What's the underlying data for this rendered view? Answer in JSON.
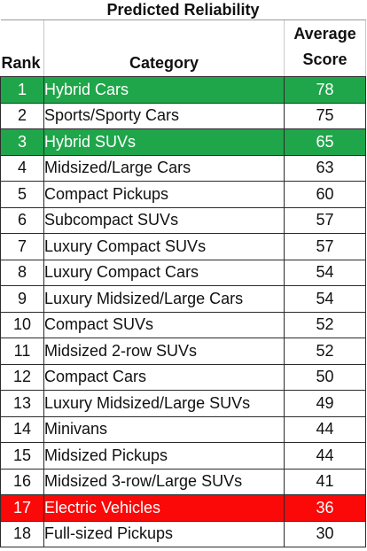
{
  "table": {
    "title": "Predicted Reliability",
    "headers": {
      "rank": "Rank",
      "category": "Category",
      "score_line1": "Average",
      "score_line2": "Score"
    },
    "rows": [
      {
        "rank": "1",
        "category": "Hybrid Cars",
        "score": "78",
        "highlight": "green"
      },
      {
        "rank": "2",
        "category": "Sports/Sporty Cars",
        "score": "75",
        "highlight": "none"
      },
      {
        "rank": "3",
        "category": "Hybrid SUVs",
        "score": "65",
        "highlight": "green"
      },
      {
        "rank": "4",
        "category": "Midsized/Large Cars",
        "score": "63",
        "highlight": "none"
      },
      {
        "rank": "5",
        "category": "Compact Pickups",
        "score": "60",
        "highlight": "none"
      },
      {
        "rank": "6",
        "category": "Subcompact SUVs",
        "score": "57",
        "highlight": "none"
      },
      {
        "rank": "7",
        "category": "Luxury Compact SUVs",
        "score": "57",
        "highlight": "none"
      },
      {
        "rank": "8",
        "category": "Luxury Compact Cars",
        "score": "54",
        "highlight": "none"
      },
      {
        "rank": "9",
        "category": "Luxury Midsized/Large Cars",
        "score": "54",
        "highlight": "none"
      },
      {
        "rank": "10",
        "category": "Compact SUVs",
        "score": "52",
        "highlight": "none"
      },
      {
        "rank": "11",
        "category": "Midsized 2-row SUVs",
        "score": "52",
        "highlight": "none"
      },
      {
        "rank": "12",
        "category": "Compact Cars",
        "score": "50",
        "highlight": "none"
      },
      {
        "rank": "13",
        "category": "Luxury Midsized/Large SUVs",
        "score": "49",
        "highlight": "none"
      },
      {
        "rank": "14",
        "category": "Minivans",
        "score": "44",
        "highlight": "none"
      },
      {
        "rank": "15",
        "category": "Midsized Pickups",
        "score": "44",
        "highlight": "none"
      },
      {
        "rank": "16",
        "category": "Midsized 3-row/Large SUVs",
        "score": "41",
        "highlight": "none"
      },
      {
        "rank": "17",
        "category": "Electric Vehicles",
        "score": "36",
        "highlight": "red"
      },
      {
        "rank": "18",
        "category": "Full-sized Pickups",
        "score": "30",
        "highlight": "none"
      }
    ]
  },
  "colors": {
    "highlight_green": "#1fa64a",
    "highlight_red": "#fb0808",
    "grid_line": "#2b2b2b"
  }
}
